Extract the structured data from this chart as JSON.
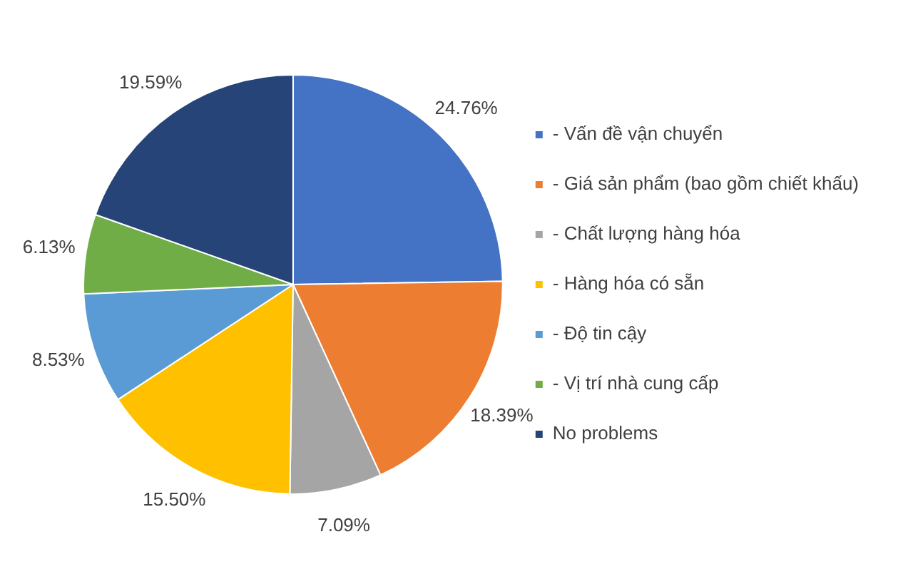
{
  "chart_data": {
    "type": "pie",
    "categories": [
      "- Vấn đề vận chuyển",
      "- Giá sản phẩm (bao gồm chiết khấu)",
      "- Chất lượng hàng hóa",
      "- Hàng hóa có sẵn",
      "- Độ tin cậy",
      "- Vị trí nhà cung cấp",
      "No problems"
    ],
    "values": [
      24.76,
      18.39,
      7.09,
      15.5,
      8.53,
      6.13,
      19.59
    ],
    "colors": [
      "#4472c4",
      "#ed7d31",
      "#a5a5a5",
      "#ffc000",
      "#5b9bd5",
      "#70ad47",
      "#264478"
    ],
    "value_labels": [
      "24.76%",
      "18.39%",
      "7.09%",
      "15.50%",
      "8.53%",
      "6.13%",
      "19.59%"
    ],
    "legend": "right"
  }
}
